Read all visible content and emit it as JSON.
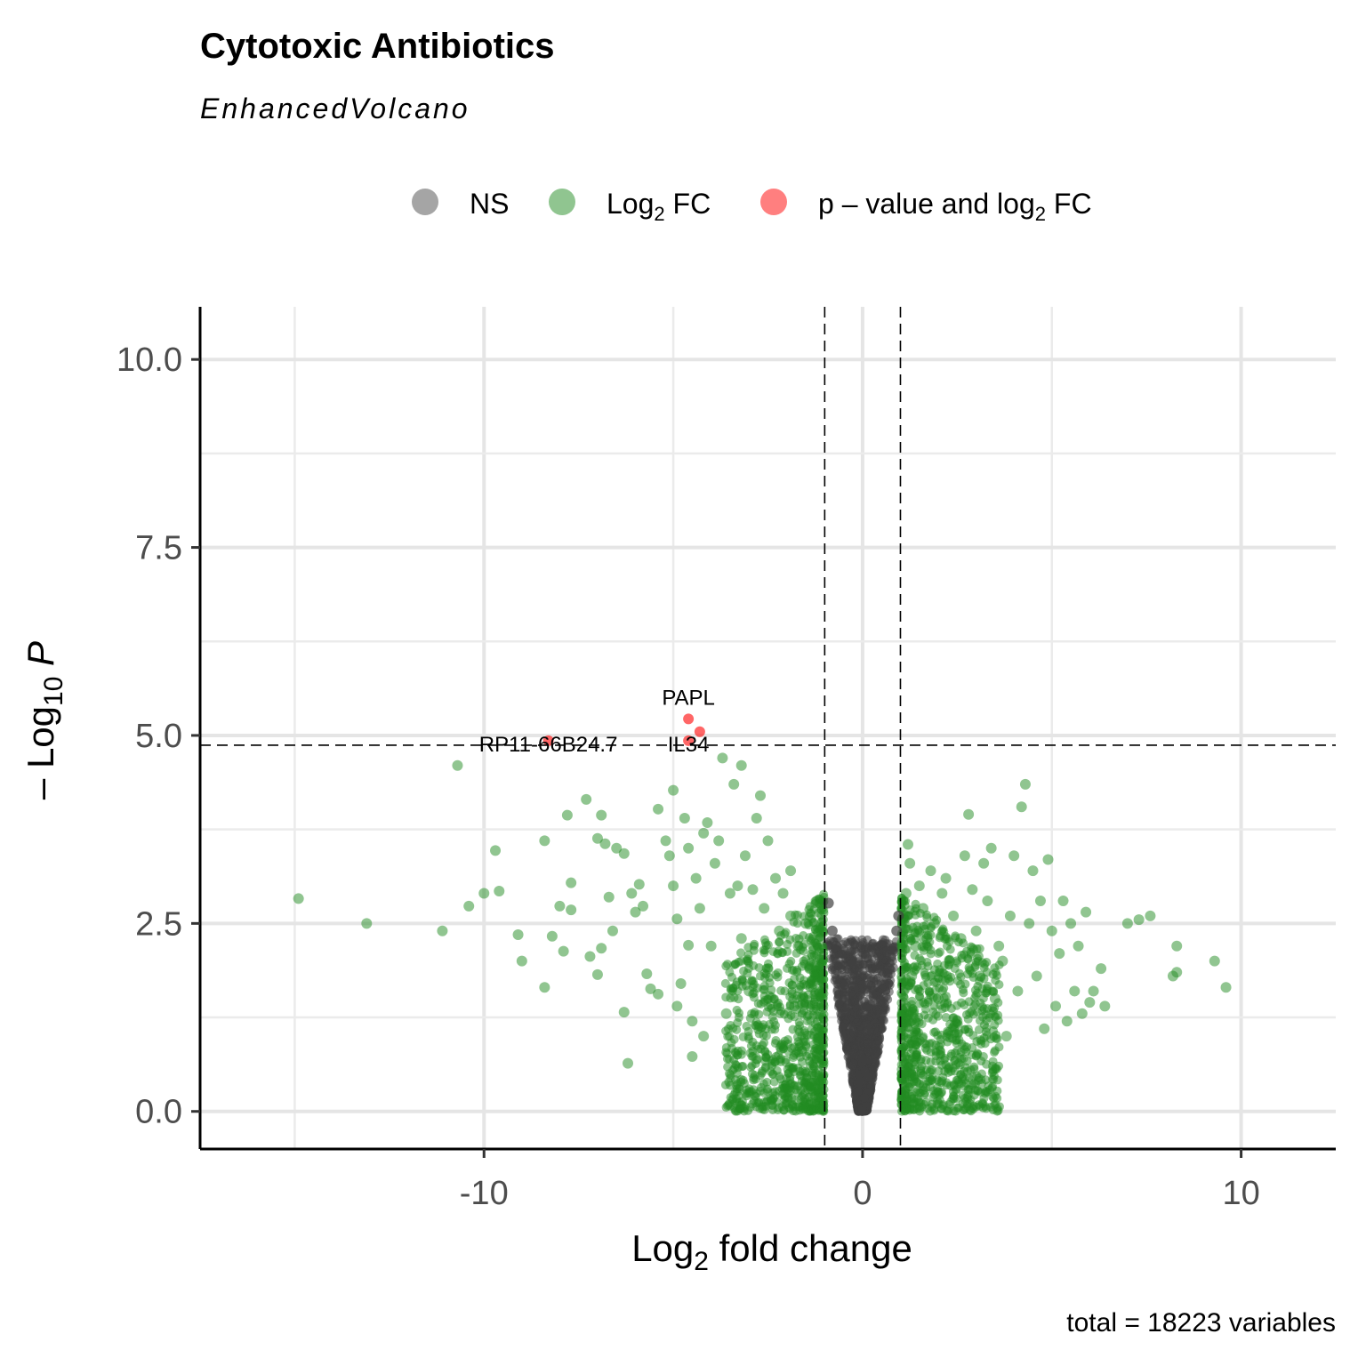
{
  "chart_data": {
    "type": "scatter",
    "title": "Cytotoxic Antibiotics",
    "subtitle": "EnhancedVolcano",
    "xlabel": "Log2 fold change",
    "ylabel": "-Log10 P",
    "caption": "total = 18223 variables",
    "xlim": [
      -17.5,
      12.5
    ],
    "ylim": [
      -0.5,
      10.7
    ],
    "x_ticks": [
      -10,
      0,
      10
    ],
    "x_tick_labels": [
      "-10",
      "0",
      "10"
    ],
    "y_ticks": [
      0,
      2.5,
      5,
      7.5,
      10
    ],
    "y_tick_labels": [
      "0.0",
      "2.5",
      "5.0",
      "7.5",
      "10.0"
    ],
    "grid": true,
    "legend_position": "top",
    "cutoffs": {
      "log2fc": [
        -1,
        1
      ],
      "neg_log10_p": 4.87
    },
    "colors": {
      "NS": "#7f7f7f",
      "Log2 FC": "#228b22",
      "p-value and log2 FC": "#ff0000"
    },
    "legend": [
      {
        "key": "NS",
        "label": "NS",
        "color": "#7f7f7f"
      },
      {
        "key": "log2fc",
        "label_main": "Log",
        "label_sub": "2",
        "label_rest": " FC",
        "color": "#228b22"
      },
      {
        "key": "both",
        "label_main": "p – value and log",
        "label_sub": "2",
        "label_rest": " FC",
        "color": "#ff0000"
      }
    ],
    "labeled_points": [
      {
        "label": "PAPL",
        "x": -4.6,
        "y": 5.22
      },
      {
        "label": "IL34",
        "x": -4.6,
        "y": 4.93
      },
      {
        "label": "RP11-66B24.7",
        "x": -8.3,
        "y": 4.93
      }
    ],
    "series": [
      {
        "name": "p-value and log2 FC",
        "color": "#ff0000",
        "points": [
          [
            -4.6,
            5.22
          ],
          [
            -4.3,
            5.05
          ],
          [
            -4.6,
            4.93
          ],
          [
            -8.3,
            4.93
          ]
        ]
      },
      {
        "name": "Log2 FC",
        "color": "#228b22",
        "points": [
          [
            -14.9,
            2.83
          ],
          [
            -13.1,
            2.5
          ],
          [
            -11.1,
            2.4
          ],
          [
            -10.7,
            4.6
          ],
          [
            -10.4,
            2.73
          ],
          [
            -10.0,
            2.9
          ],
          [
            -9.7,
            3.47
          ],
          [
            -9.6,
            2.93
          ],
          [
            -9.1,
            2.35
          ],
          [
            -9.0,
            2.0
          ],
          [
            -8.4,
            3.6
          ],
          [
            -8.4,
            1.65
          ],
          [
            -8.2,
            2.33
          ],
          [
            -8.0,
            2.73
          ],
          [
            -7.9,
            2.13
          ],
          [
            -7.8,
            3.94
          ],
          [
            -7.7,
            3.04
          ],
          [
            -7.7,
            2.68
          ],
          [
            -7.3,
            4.15
          ],
          [
            -7.2,
            2.06
          ],
          [
            -7.0,
            3.63
          ],
          [
            -7.0,
            1.82
          ],
          [
            -6.9,
            2.17
          ],
          [
            -6.9,
            3.94
          ],
          [
            -6.8,
            3.56
          ],
          [
            -6.7,
            2.85
          ],
          [
            -6.6,
            2.4
          ],
          [
            -6.5,
            3.5
          ],
          [
            -6.3,
            3.43
          ],
          [
            -6.3,
            1.32
          ],
          [
            -6.2,
            0.64
          ],
          [
            -6.1,
            2.9
          ],
          [
            -6.0,
            2.65
          ],
          [
            -5.9,
            3.02
          ],
          [
            -5.8,
            2.73
          ],
          [
            -5.7,
            1.83
          ],
          [
            -5.6,
            1.63
          ],
          [
            -5.4,
            1.56
          ],
          [
            -5.4,
            4.02
          ],
          [
            -5.2,
            3.6
          ],
          [
            -5.1,
            3.4
          ],
          [
            -5.0,
            3.0
          ],
          [
            -5.0,
            4.27
          ],
          [
            -4.9,
            2.56
          ],
          [
            -4.9,
            1.4
          ],
          [
            -4.8,
            1.7
          ],
          [
            -4.7,
            3.9
          ],
          [
            -4.6,
            3.5
          ],
          [
            -4.6,
            2.21
          ],
          [
            -4.5,
            1.2
          ],
          [
            -4.5,
            0.73
          ],
          [
            -4.4,
            3.1
          ],
          [
            -4.3,
            2.7
          ],
          [
            -4.2,
            3.7
          ],
          [
            -4.2,
            1.0
          ],
          [
            -4.1,
            3.84
          ],
          [
            -4.0,
            2.2
          ],
          [
            -3.9,
            3.3
          ],
          [
            -3.8,
            3.6
          ],
          [
            -3.7,
            4.7
          ],
          [
            -3.6,
            1.3
          ],
          [
            -3.5,
            2.9
          ],
          [
            -3.4,
            4.35
          ],
          [
            -3.3,
            3.0
          ],
          [
            -3.2,
            2.3
          ],
          [
            -3.2,
            4.6
          ],
          [
            -3.1,
            3.4
          ],
          [
            -3.0,
            1.6
          ],
          [
            -2.9,
            2.95
          ],
          [
            -2.8,
            3.9
          ],
          [
            -2.8,
            0.7
          ],
          [
            -2.7,
            4.2
          ],
          [
            -2.6,
            2.7
          ],
          [
            -2.5,
            3.6
          ],
          [
            -2.5,
            1.9
          ],
          [
            -2.3,
            3.1
          ],
          [
            -2.2,
            2.4
          ],
          [
            -2.1,
            2.9
          ],
          [
            -1.9,
            2.6
          ],
          [
            -1.9,
            3.2
          ],
          [
            -1.8,
            1.4
          ],
          [
            -1.7,
            2.2
          ],
          [
            -1.6,
            0.8
          ],
          [
            -1.5,
            2.5
          ],
          [
            -1.4,
            1.9
          ],
          [
            -1.3,
            2.2
          ],
          [
            -1.2,
            2.8
          ],
          [
            -1.15,
            1.6
          ],
          [
            1.1,
            2.5
          ],
          [
            1.15,
            2.9
          ],
          [
            1.2,
            3.55
          ],
          [
            1.25,
            3.3
          ],
          [
            1.3,
            1.8
          ],
          [
            1.4,
            2.2
          ],
          [
            1.5,
            3.0
          ],
          [
            1.6,
            2.7
          ],
          [
            1.7,
            2.3
          ],
          [
            1.8,
            3.2
          ],
          [
            1.9,
            2.5
          ],
          [
            2.0,
            1.5
          ],
          [
            2.1,
            2.9
          ],
          [
            2.2,
            3.1
          ],
          [
            2.3,
            2.0
          ],
          [
            2.4,
            2.6
          ],
          [
            2.5,
            1.2
          ],
          [
            2.6,
            2.3
          ],
          [
            2.7,
            3.4
          ],
          [
            2.8,
            3.95
          ],
          [
            2.9,
            2.95
          ],
          [
            3.0,
            2.4
          ],
          [
            3.1,
            1.8
          ],
          [
            3.2,
            3.3
          ],
          [
            3.3,
            2.8
          ],
          [
            3.4,
            3.5
          ],
          [
            3.5,
            1.5
          ],
          [
            3.6,
            2.2
          ],
          [
            3.7,
            2.0
          ],
          [
            3.8,
            1.0
          ],
          [
            3.9,
            2.6
          ],
          [
            4.0,
            3.4
          ],
          [
            4.1,
            1.6
          ],
          [
            4.2,
            4.05
          ],
          [
            4.3,
            4.35
          ],
          [
            4.4,
            2.5
          ],
          [
            4.5,
            3.2
          ],
          [
            4.6,
            1.8
          ],
          [
            4.7,
            2.8
          ],
          [
            4.8,
            1.1
          ],
          [
            4.9,
            3.35
          ],
          [
            5.0,
            2.4
          ],
          [
            5.1,
            1.4
          ],
          [
            5.2,
            2.1
          ],
          [
            5.3,
            2.8
          ],
          [
            5.4,
            1.2
          ],
          [
            5.5,
            2.5
          ],
          [
            5.6,
            1.6
          ],
          [
            5.7,
            2.2
          ],
          [
            5.8,
            1.3
          ],
          [
            5.9,
            2.65
          ],
          [
            6.0,
            1.45
          ],
          [
            6.1,
            1.6
          ],
          [
            6.3,
            1.9
          ],
          [
            6.4,
            1.4
          ],
          [
            7.0,
            2.5
          ],
          [
            7.3,
            2.55
          ],
          [
            7.6,
            2.6
          ],
          [
            8.2,
            1.8
          ],
          [
            8.3,
            1.85
          ],
          [
            8.3,
            2.2
          ],
          [
            9.3,
            2.0
          ],
          [
            9.6,
            1.65
          ]
        ]
      },
      {
        "name": "NS",
        "color": "#404040",
        "points": [
          [
            -0.9,
            2.77
          ],
          [
            -0.7,
            2.2
          ],
          [
            -0.8,
            2.4
          ],
          [
            -0.3,
            2.0
          ],
          [
            0.1,
            2.05
          ],
          [
            0.9,
            2.4
          ],
          [
            0.95,
            2.6
          ],
          [
            0.7,
            1.9
          ]
        ]
      }
    ]
  }
}
